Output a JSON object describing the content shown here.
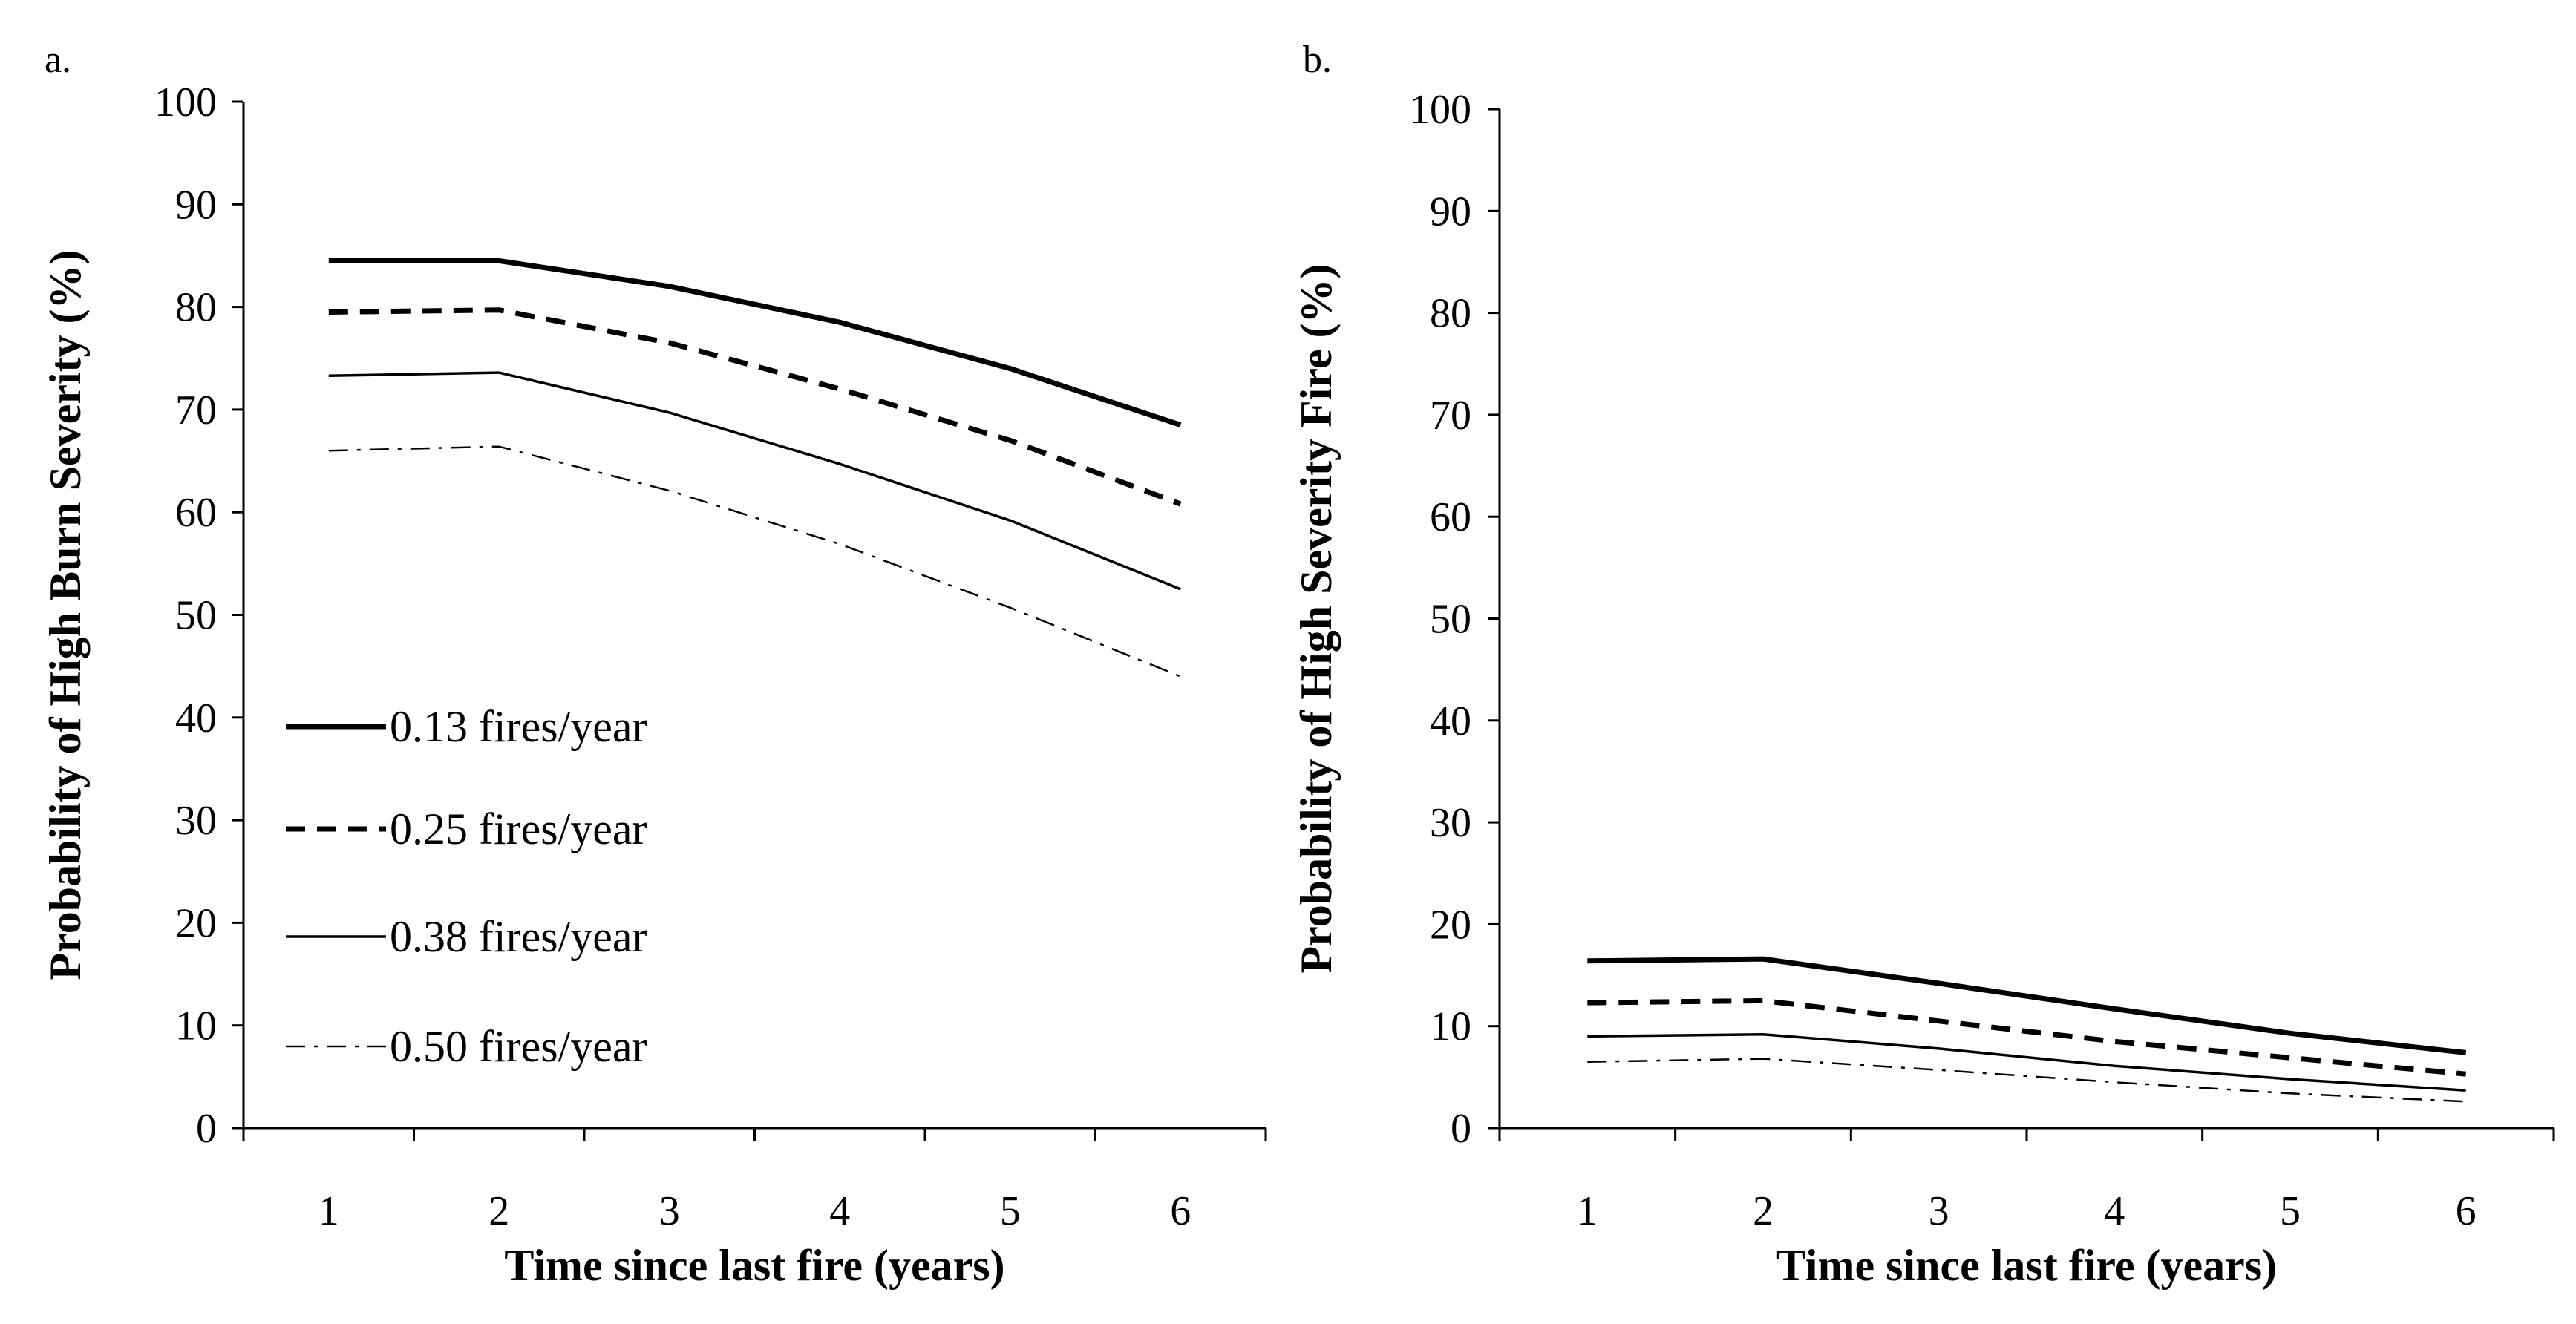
{
  "chart_data": [
    {
      "type": "line",
      "panel_label": "a.",
      "x": [
        1,
        2,
        3,
        4,
        5,
        6
      ],
      "x_tick_labels": [
        "1",
        "2",
        "3",
        "4",
        "5",
        "6"
      ],
      "y_tick_labels": [
        "0",
        "10",
        "20",
        "30",
        "40",
        "50",
        "60",
        "70",
        "80",
        "90",
        "100"
      ],
      "xlabel": "Time since last fire (years)",
      "ylabel": "Probability of High Burn Severity (%)",
      "ylim": [
        0,
        100
      ],
      "grid": false,
      "legend_position": "bottom-left",
      "series": [
        {
          "name": "0.13 fires/year",
          "style": "thick-solid",
          "values": [
            84.5,
            84.5,
            82.0,
            78.5,
            74.0,
            68.5
          ]
        },
        {
          "name": "0.25 fires/year",
          "style": "thick-dashed",
          "values": [
            79.5,
            79.7,
            76.5,
            72.0,
            67.0,
            60.8
          ]
        },
        {
          "name": "0.38 fires/year",
          "style": "thin-solid",
          "values": [
            73.3,
            73.6,
            69.7,
            64.7,
            59.2,
            52.5
          ]
        },
        {
          "name": "0.50 fires/year",
          "style": "thin-dashdot",
          "values": [
            66.0,
            66.4,
            62.1,
            56.9,
            50.7,
            44.0
          ]
        }
      ]
    },
    {
      "type": "line",
      "panel_label": "b.",
      "x": [
        1,
        2,
        3,
        4,
        5,
        6
      ],
      "x_tick_labels": [
        "1",
        "2",
        "3",
        "4",
        "5",
        "6"
      ],
      "y_tick_labels": [
        "0",
        "10",
        "20",
        "30",
        "40",
        "50",
        "60",
        "70",
        "80",
        "90",
        "100"
      ],
      "xlabel": "Time since last fire (years)",
      "ylabel": "Probability of High Severity Fire (%)",
      "ylim": [
        0,
        100
      ],
      "grid": false,
      "series": [
        {
          "name": "0.13 fires/year",
          "style": "thick-solid",
          "values": [
            16.4,
            16.6,
            14.2,
            11.7,
            9.3,
            7.4
          ]
        },
        {
          "name": "0.25 fires/year",
          "style": "thick-dashed",
          "values": [
            12.3,
            12.5,
            10.5,
            8.5,
            6.9,
            5.3
          ]
        },
        {
          "name": "0.38 fires/year",
          "style": "thin-solid",
          "values": [
            9.0,
            9.2,
            7.8,
            6.1,
            4.8,
            3.7
          ]
        },
        {
          "name": "0.50 fires/year",
          "style": "thin-dashdot",
          "values": [
            6.5,
            6.8,
            5.7,
            4.5,
            3.4,
            2.6
          ]
        }
      ]
    }
  ]
}
